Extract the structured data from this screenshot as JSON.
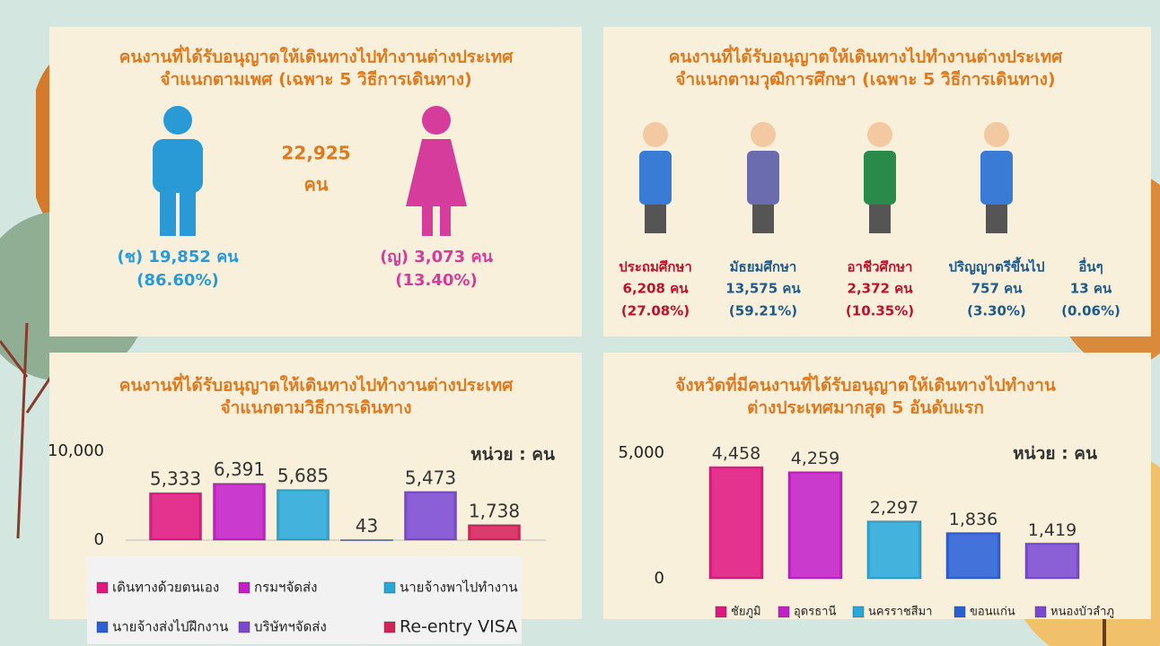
{
  "gender_panel": {
    "title": [
      "คนงานที่ได้รับอนุญาตให้เดินทางไปทำงานต่างประเทศ",
      "จำแนกตามเพศ (เฉพาะ 5 วิธีการเดินทาง)"
    ],
    "total": "22,925",
    "total_unit": "คน",
    "male": {
      "count": "(ช) 19,852 คน",
      "percent": "(86.60%)"
    },
    "female": {
      "count": "(ญ) 3,073 คน",
      "percent": "(13.40%)"
    }
  },
  "education_panel": {
    "title": [
      "คนงานที่ได้รับอนุญาตให้เดินทางไปทำงานต่างประเทศ",
      "จำแนกตามวุฒิการศึกษา (เฉพาะ 5 วิธีการเดินทาง)"
    ],
    "levels": [
      {
        "name": "ประถมศึกษา",
        "count": "6,208 คน",
        "percent": "(27.08%)",
        "color": "#c0102a"
      },
      {
        "name": "มัธยมศึกษา",
        "count": "13,575 คน",
        "percent": "(59.21%)",
        "color": "#1f5a8a"
      },
      {
        "name": "อาชีวศึกษา",
        "count": "2,372 คน",
        "percent": "(10.35%)",
        "color": "#c0102a"
      },
      {
        "name": "ปริญญาตรีขึ้นไป",
        "count": "757 คน",
        "percent": "(3.30%)",
        "color": "#1f5a8a"
      },
      {
        "name": "อื่นๆ",
        "count": "13 คน",
        "percent": "(0.06%)",
        "color": "#1f5a8a"
      }
    ]
  },
  "chart_data": [
    {
      "type": "bar",
      "title": [
        "คนงานที่ได้รับอนุญาตให้เดินทางไปทำงานต่างประเทศ",
        "จำแนกตามวิธีการเดินทาง"
      ],
      "unit_label": "หน่วย : คน",
      "categories": [
        "เดินทางด้วยตนเอง",
        "กรมฯจัดส่ง",
        "นายจ้างพาไปทำงาน",
        "นายจ้างส่งไปฝึกงาน",
        "บริษัทฯจัดส่ง",
        "Re-entry VISA"
      ],
      "values": [
        5333,
        6391,
        5685,
        43,
        5473,
        1738
      ],
      "value_labels": [
        "5,333",
        "6,391",
        "5,685",
        "43",
        "5,473",
        "1,738"
      ],
      "colors": [
        "#e0177f",
        "#c21fc7",
        "#29a8d8",
        "#2b5fd6",
        "#7b49d0",
        "#d6225a"
      ],
      "ylim": [
        0,
        10000
      ],
      "yticks": [
        0,
        {
          "value": 10000,
          "label": "10,000"
        }
      ],
      "baseline": true,
      "legend": "bottom"
    },
    {
      "type": "bar",
      "title": [
        "จังหวัดที่มีคนงานที่ได้รับอนุญาตให้เดินทางไปทำงาน",
        "ต่างประเทศมากสุด 5 อันดับแรก"
      ],
      "unit_label": "หน่วย : คน",
      "categories": [
        "ชัยภูมิ",
        "อุดรธานี",
        "นครราชสีมา",
        "ขอนแก่น",
        "หนองบัวลำภู"
      ],
      "values": [
        4458,
        4259,
        2297,
        1836,
        1419
      ],
      "value_labels": [
        "4,458",
        "4,259",
        "2,297",
        "1,836",
        "1,419"
      ],
      "colors": [
        "#e0177f",
        "#c21fc7",
        "#29a8d8",
        "#2b5fd6",
        "#7b49d0"
      ],
      "ylim": [
        0,
        5000
      ],
      "yticks": [
        0,
        {
          "value": 5000,
          "label": "5,000"
        }
      ],
      "baseline": false,
      "legend": "bottom"
    }
  ]
}
